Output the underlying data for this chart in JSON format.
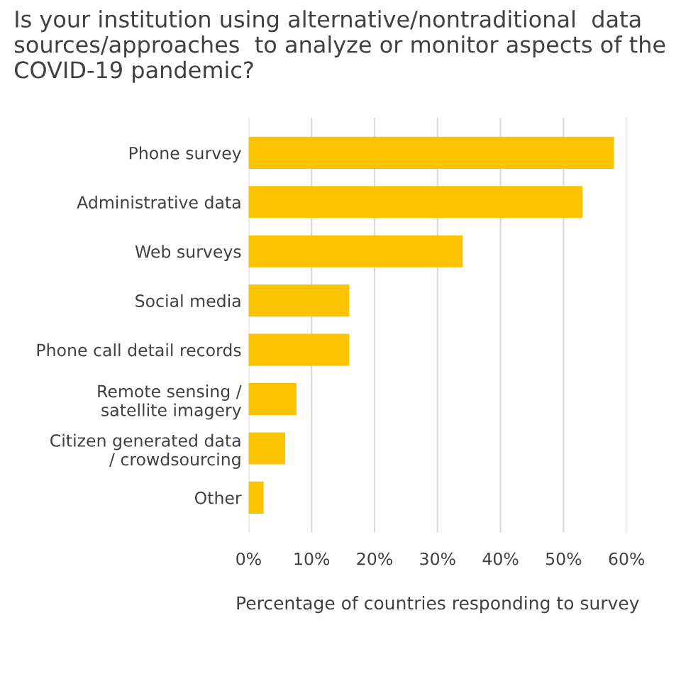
{
  "chart_data": {
    "type": "bar",
    "orientation": "horizontal",
    "title": "Is your institution using alternative/nontraditional  data sources/approaches  to analyze or monitor aspects of the COVID-19 pandemic?",
    "xlabel": "Percentage of countries responding to survey",
    "categories": [
      "Phone survey",
      "Administrative data",
      "Web surveys",
      "Social media",
      "Phone call detail records",
      "Remote sensing /\nsatellite imagery",
      "Citizen generated data\n/ crowdsourcing",
      "Other"
    ],
    "values": [
      58,
      53,
      34,
      16,
      16,
      7.6,
      5.8,
      2.4
    ],
    "color": "#fbc300",
    "xlim": [
      0,
      60
    ],
    "xticks": [
      {
        "value": 0,
        "label": "0%"
      },
      {
        "value": 10,
        "label": "10%"
      },
      {
        "value": 20,
        "label": "20%"
      },
      {
        "value": 30,
        "label": "30%"
      },
      {
        "value": 40,
        "label": "40%"
      },
      {
        "value": 50,
        "label": "50%"
      },
      {
        "value": 60,
        "label": "60%"
      }
    ],
    "grid": "x",
    "legend": false
  }
}
